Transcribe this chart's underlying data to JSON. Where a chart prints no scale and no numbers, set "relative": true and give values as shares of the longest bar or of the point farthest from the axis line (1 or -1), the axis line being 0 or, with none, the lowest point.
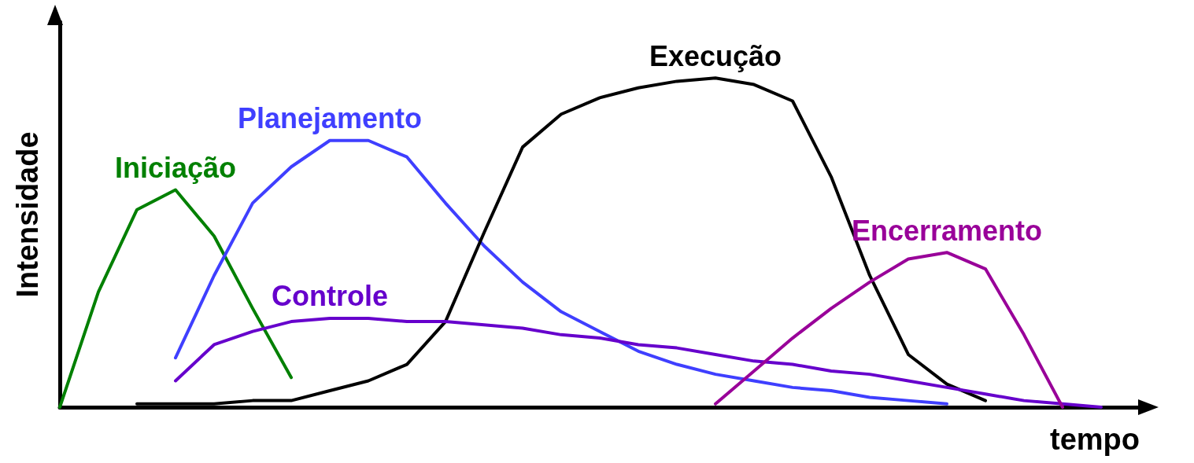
{
  "chart_data": {
    "type": "line",
    "relative": true,
    "xlabel": "tempo",
    "ylabel": "Intensidade",
    "categories": [
      null,
      null,
      null,
      null,
      null,
      null,
      null,
      null,
      null,
      null,
      null,
      null,
      null,
      null,
      null,
      null,
      null,
      null,
      null,
      null,
      null,
      null,
      null,
      null,
      null,
      null,
      null,
      null,
      null
    ],
    "grid": false,
    "legend": false,
    "marker": "none",
    "line_style": "solid",
    "series": [
      {
        "name": "Iniciação",
        "color": "#008000",
        "values": [
          0,
          0.35,
          0.6,
          0.66,
          0.52,
          0.3,
          0.09,
          null,
          null,
          null,
          null,
          null,
          null,
          null,
          null,
          null,
          null,
          null,
          null,
          null,
          null,
          null,
          null,
          null,
          null,
          null,
          null,
          null,
          null
        ]
      },
      {
        "name": "Planejamento",
        "color": "#3f3fff",
        "values": [
          null,
          null,
          null,
          0.15,
          0.4,
          0.62,
          0.73,
          0.81,
          0.81,
          0.76,
          0.62,
          0.49,
          0.38,
          0.29,
          0.23,
          0.17,
          0.13,
          0.1,
          0.08,
          0.06,
          0.05,
          0.03,
          0.02,
          0.01,
          null,
          null,
          null,
          null,
          null
        ]
      },
      {
        "name": "Execução",
        "color": "#000000",
        "values": [
          null,
          null,
          0.01,
          0.01,
          0.01,
          0.02,
          0.02,
          0.05,
          0.08,
          0.13,
          0.26,
          0.53,
          0.79,
          0.89,
          0.94,
          0.97,
          0.99,
          1.0,
          0.98,
          0.93,
          0.7,
          0.4,
          0.16,
          0.07,
          0.02,
          null,
          null,
          null,
          null
        ]
      },
      {
        "name": "Controle",
        "color": "#6600cc",
        "values": [
          null,
          null,
          null,
          0.08,
          0.19,
          0.23,
          0.26,
          0.27,
          0.27,
          0.26,
          0.26,
          0.25,
          0.24,
          0.22,
          0.21,
          0.19,
          0.18,
          0.16,
          0.14,
          0.13,
          0.11,
          0.1,
          0.08,
          0.06,
          0.04,
          0.02,
          0.01,
          0,
          null
        ]
      },
      {
        "name": "Encerramento",
        "color": "#990099",
        "values": [
          null,
          null,
          null,
          null,
          null,
          null,
          null,
          null,
          null,
          null,
          null,
          null,
          null,
          null,
          null,
          null,
          null,
          0.01,
          0.11,
          0.21,
          0.3,
          0.38,
          0.45,
          0.47,
          0.42,
          0.22,
          0,
          null,
          null
        ]
      }
    ]
  }
}
